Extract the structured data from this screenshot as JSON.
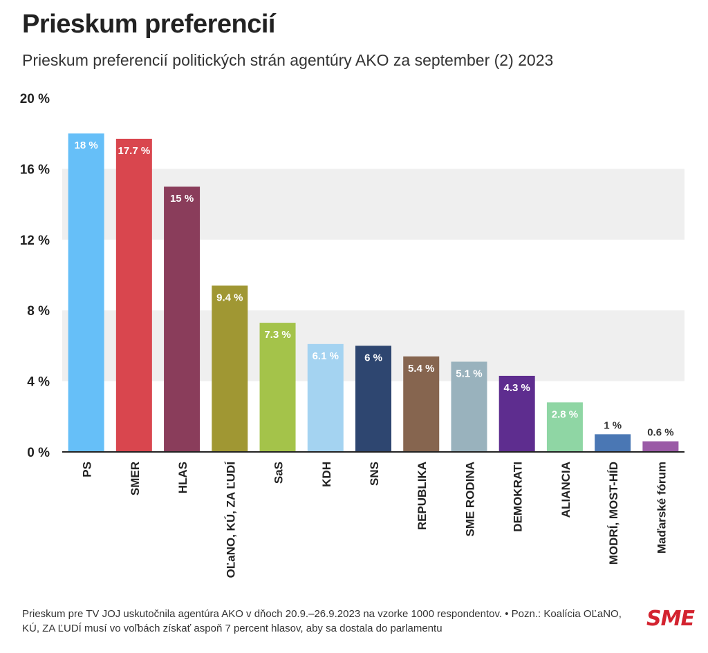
{
  "title": "Prieskum preferencií",
  "subtitle": "Prieskum preferencií politických strán agentúry AKO za september (2) 2023",
  "footer": {
    "note": "Prieskum pre TV JOJ uskutočnila agentúra AKO v dňoch 20.9.–26.9.2023 na vzorke 1000 respondentov. • Pozn.: Koalícia OĽaNO, KÚ, ZA ĽUDÍ musí vo voľbách získať aspoň 7 percent hlasov, aby sa dostala do parlamentu"
  },
  "logo": "SME",
  "chart_data": {
    "type": "bar",
    "title": "Prieskum preferencií",
    "subtitle": "Prieskum preferencií politických strán agentúry AKO za september (2) 2023",
    "xlabel": "",
    "ylabel": "",
    "ylim": [
      0,
      20
    ],
    "yticks": [
      0,
      4,
      8,
      12,
      16,
      20
    ],
    "ytick_labels": [
      "0 %",
      "4 %",
      "8 %",
      "12 %",
      "16 %",
      "20 %"
    ],
    "grid": "alternating horizontal bands",
    "categories": [
      "PS",
      "SMER",
      "HLAS",
      "OĽaNO, KÚ, ZA ĽUDÍ",
      "SaS",
      "KDH",
      "SNS",
      "REPUBLIKA",
      "SME RODINA",
      "DEMOKRATI",
      "ALIANCIA",
      "MODRÍ, MOST-HÍD",
      "Maďarské fórum"
    ],
    "values": [
      18,
      17.7,
      15,
      9.4,
      7.3,
      6.1,
      6,
      5.4,
      5.1,
      4.3,
      2.8,
      1,
      0.6
    ],
    "value_labels": [
      "18 %",
      "17.7 %",
      "15 %",
      "9.4 %",
      "7.3 %",
      "6.1 %",
      "6 %",
      "5.4 %",
      "5.1 %",
      "4.3 %",
      "2.8 %",
      "1 %",
      "0.6 %"
    ],
    "colors": [
      "#66bff8",
      "#d9464e",
      "#8a3d5b",
      "#a09733",
      "#a4c34a",
      "#a4d3f1",
      "#2e4670",
      "#86654f",
      "#99b2bd",
      "#5e2d8f",
      "#8fd6a4",
      "#4a77b4",
      "#9a5aa6"
    ],
    "label_colors": [
      "#ffffff",
      "#ffffff",
      "#ffffff",
      "#ffffff",
      "#ffffff",
      "#ffffff",
      "#ffffff",
      "#ffffff",
      "#ffffff",
      "#ffffff",
      "#ffffff",
      "#333333",
      "#333333"
    ]
  }
}
